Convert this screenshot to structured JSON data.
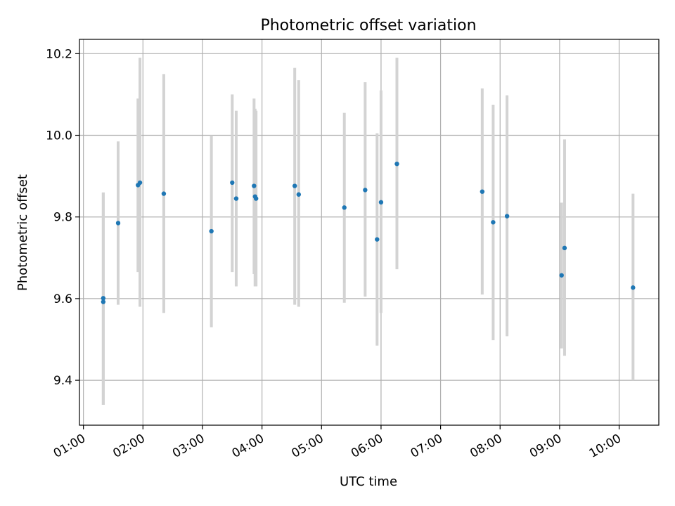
{
  "chart_data": {
    "type": "scatter",
    "title": "Photometric offset variation",
    "xlabel": "UTC time",
    "ylabel": "Photometric offset",
    "x_unit": "UTC time (HH:MM)",
    "xlim": [
      "00:56",
      "10:40"
    ],
    "ylim": [
      9.29,
      10.235
    ],
    "grid": true,
    "point_color": "#1f77b4",
    "errorbar_color": "#d3d3d3",
    "xticks": [
      "01:00",
      "02:00",
      "03:00",
      "04:00",
      "05:00",
      "06:00",
      "07:00",
      "08:00",
      "09:00",
      "10:00"
    ],
    "yticks": [
      "9.4",
      "9.6",
      "9.8",
      "10.0",
      "10.2"
    ],
    "points": [
      {
        "x": "01:20",
        "y": 9.592,
        "lo": 9.34,
        "hi": 9.86
      },
      {
        "x": "01:20",
        "y": 9.601,
        "lo": 9.34,
        "hi": 9.86
      },
      {
        "x": "01:35",
        "y": 9.785,
        "lo": 9.585,
        "hi": 9.985
      },
      {
        "x": "01:55",
        "y": 9.878,
        "lo": 9.665,
        "hi": 10.09
      },
      {
        "x": "01:57",
        "y": 9.884,
        "lo": 9.58,
        "hi": 10.19
      },
      {
        "x": "02:21",
        "y": 9.857,
        "lo": 9.565,
        "hi": 10.15
      },
      {
        "x": "03:09",
        "y": 9.765,
        "lo": 9.53,
        "hi": 10.0
      },
      {
        "x": "03:30",
        "y": 9.884,
        "lo": 9.665,
        "hi": 10.1
      },
      {
        "x": "03:34",
        "y": 9.845,
        "lo": 9.63,
        "hi": 10.06
      },
      {
        "x": "03:52",
        "y": 9.876,
        "lo": 9.66,
        "hi": 10.09
      },
      {
        "x": "03:53",
        "y": 9.85,
        "lo": 9.63,
        "hi": 10.065
      },
      {
        "x": "03:54",
        "y": 9.845,
        "lo": 9.63,
        "hi": 10.06
      },
      {
        "x": "04:33",
        "y": 9.876,
        "lo": 9.585,
        "hi": 10.165
      },
      {
        "x": "04:37",
        "y": 9.855,
        "lo": 9.58,
        "hi": 10.135
      },
      {
        "x": "05:23",
        "y": 9.823,
        "lo": 9.59,
        "hi": 10.055
      },
      {
        "x": "05:44",
        "y": 9.866,
        "lo": 9.605,
        "hi": 10.13
      },
      {
        "x": "05:56",
        "y": 9.745,
        "lo": 9.485,
        "hi": 10.005
      },
      {
        "x": "06:00",
        "y": 9.836,
        "lo": 9.565,
        "hi": 10.11
      },
      {
        "x": "06:16",
        "y": 9.93,
        "lo": 9.672,
        "hi": 10.19
      },
      {
        "x": "07:42",
        "y": 9.862,
        "lo": 9.61,
        "hi": 10.115
      },
      {
        "x": "07:53",
        "y": 9.787,
        "lo": 9.498,
        "hi": 10.075
      },
      {
        "x": "08:07",
        "y": 9.802,
        "lo": 9.508,
        "hi": 10.098
      },
      {
        "x": "09:02",
        "y": 9.657,
        "lo": 9.478,
        "hi": 9.835
      },
      {
        "x": "09:05",
        "y": 9.724,
        "lo": 9.46,
        "hi": 9.99
      },
      {
        "x": "10:14",
        "y": 9.627,
        "lo": 9.4,
        "hi": 9.857
      }
    ]
  }
}
